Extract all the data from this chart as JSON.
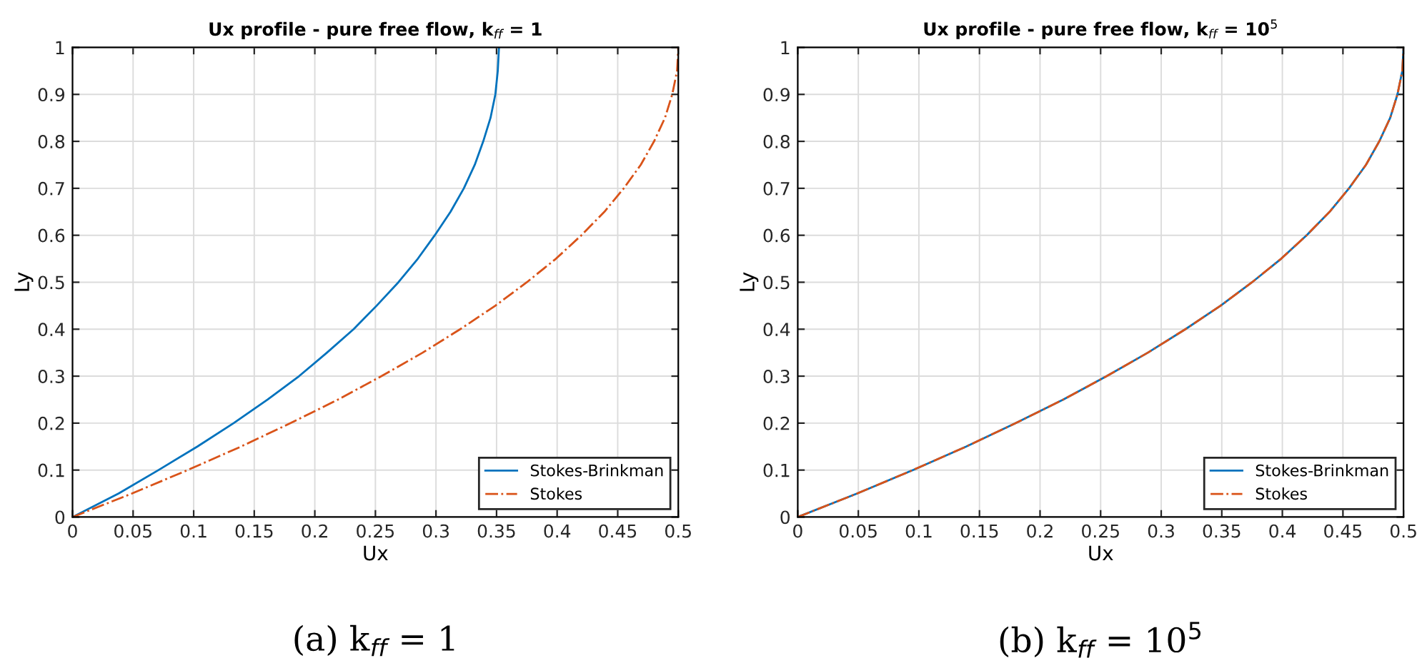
{
  "chart_data": [
    {
      "type": "line",
      "title": "Ux profile - pure free flow, k$_{ff}$ = 1",
      "xlabel": "Ux",
      "ylabel": "Ly",
      "xlim": [
        0,
        0.5
      ],
      "ylim": [
        0,
        1
      ],
      "xticks": [
        0,
        0.05,
        0.1,
        0.15,
        0.2,
        0.25,
        0.3,
        0.35,
        0.4,
        0.45,
        0.5
      ],
      "yticks": [
        0,
        0.1,
        0.2,
        0.3,
        0.4,
        0.5,
        0.6,
        0.7,
        0.8,
        0.9,
        1
      ],
      "grid": true,
      "legend": "bottom right",
      "annotations": [
        "(a) k$_{ff}$ = 1"
      ],
      "series": [
        {
          "name": "Stokes-Brinkman",
          "color": "#0072bd",
          "line_style": "solid",
          "x": [
            0,
            0.038,
            0.071,
            0.103,
            0.133,
            0.161,
            0.187,
            0.21,
            0.232,
            0.251,
            0.269,
            0.285,
            0.299,
            0.312,
            0.323,
            0.332,
            0.339,
            0.345,
            0.349,
            0.351,
            0.352
          ],
          "values": [
            0,
            0.05,
            0.1,
            0.15,
            0.2,
            0.25,
            0.3,
            0.35,
            0.4,
            0.45,
            0.5,
            0.55,
            0.6,
            0.65,
            0.7,
            0.75,
            0.8,
            0.85,
            0.9,
            0.95,
            1
          ]
        },
        {
          "name": "Stokes",
          "color": "#d95319",
          "line_style": "dashdot",
          "x": [
            0,
            0.049,
            0.095,
            0.139,
            0.18,
            0.219,
            0.255,
            0.289,
            0.32,
            0.349,
            0.375,
            0.399,
            0.42,
            0.439,
            0.455,
            0.469,
            0.48,
            0.489,
            0.495,
            0.499,
            0.5
          ],
          "values": [
            0,
            0.05,
            0.1,
            0.15,
            0.2,
            0.25,
            0.3,
            0.35,
            0.4,
            0.45,
            0.5,
            0.55,
            0.6,
            0.65,
            0.7,
            0.75,
            0.8,
            0.85,
            0.9,
            0.95,
            1
          ]
        }
      ]
    },
    {
      "type": "line",
      "title": "Ux profile - pure free flow, k$_{ff}$ = 10$^{5}$",
      "xlabel": "Ux",
      "ylabel": "Ly",
      "xlim": [
        0,
        0.5
      ],
      "ylim": [
        0,
        1
      ],
      "xticks": [
        0,
        0.05,
        0.1,
        0.15,
        0.2,
        0.25,
        0.3,
        0.35,
        0.4,
        0.45,
        0.5
      ],
      "yticks": [
        0,
        0.1,
        0.2,
        0.3,
        0.4,
        0.5,
        0.6,
        0.7,
        0.8,
        0.9,
        1
      ],
      "grid": true,
      "legend": "bottom right",
      "annotations": [
        "(b) k$_{ff}$ = 10$^{5}$"
      ],
      "series": [
        {
          "name": "Stokes-Brinkman",
          "color": "#0072bd",
          "line_style": "solid",
          "x": [
            0,
            0.049,
            0.095,
            0.139,
            0.18,
            0.219,
            0.255,
            0.289,
            0.32,
            0.349,
            0.375,
            0.399,
            0.42,
            0.439,
            0.455,
            0.469,
            0.48,
            0.489,
            0.495,
            0.499,
            0.5
          ],
          "values": [
            0,
            0.05,
            0.1,
            0.15,
            0.2,
            0.25,
            0.3,
            0.35,
            0.4,
            0.45,
            0.5,
            0.55,
            0.6,
            0.65,
            0.7,
            0.75,
            0.8,
            0.85,
            0.9,
            0.95,
            1
          ]
        },
        {
          "name": "Stokes",
          "color": "#d95319",
          "line_style": "dashdot",
          "x": [
            0,
            0.049,
            0.095,
            0.139,
            0.18,
            0.219,
            0.255,
            0.289,
            0.32,
            0.349,
            0.375,
            0.399,
            0.42,
            0.439,
            0.455,
            0.469,
            0.48,
            0.489,
            0.495,
            0.499,
            0.5
          ],
          "values": [
            0,
            0.05,
            0.1,
            0.15,
            0.2,
            0.25,
            0.3,
            0.35,
            0.4,
            0.45,
            0.5,
            0.55,
            0.6,
            0.65,
            0.7,
            0.75,
            0.8,
            0.85,
            0.9,
            0.95,
            1
          ]
        }
      ]
    }
  ]
}
